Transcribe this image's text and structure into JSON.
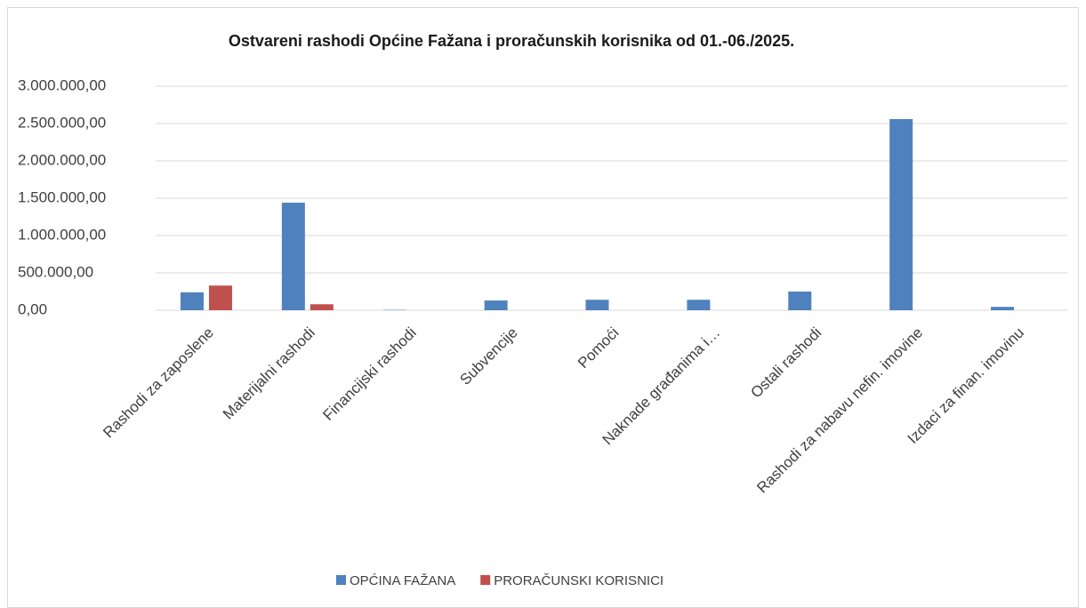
{
  "chart_data": {
    "type": "bar",
    "title": "Ostvareni rashodi Općine Fažana i proračunskih korisnika od 01.-06./2025.",
    "categories": [
      "Rashodi za zaposlene",
      "Materijalni rashodi",
      "Financijski rashodi",
      "Subvencije",
      "Pomoći",
      "Naknade građanima i…",
      "Ostali rashodi",
      "Rashodi za nabavu nefin. imovine",
      "Izdaci za finan. imovinu"
    ],
    "series": [
      {
        "name": "OPĆINA FAŽANA",
        "color": "#4f81bd",
        "values": [
          240000,
          1440000,
          5000,
          130000,
          140000,
          140000,
          250000,
          2560000,
          45000
        ]
      },
      {
        "name": "PRORAČUNSKI KORISNICI",
        "color": "#c0504d",
        "values": [
          330000,
          80000,
          0,
          0,
          0,
          0,
          0,
          0,
          0
        ]
      }
    ],
    "ylim": [
      0,
      3000000
    ],
    "yticks": [
      {
        "value": 0,
        "label": "0,00"
      },
      {
        "value": 500000,
        "label": "500.000,00"
      },
      {
        "value": 1000000,
        "label": "1.000.000,00"
      },
      {
        "value": 1500000,
        "label": "1.500.000,00"
      },
      {
        "value": 2000000,
        "label": "2.000.000,00"
      },
      {
        "value": 2500000,
        "label": "2.500.000,00"
      },
      {
        "value": 3000000,
        "label": "3.000.000,00"
      }
    ],
    "grid": true,
    "legend": "bottom"
  }
}
